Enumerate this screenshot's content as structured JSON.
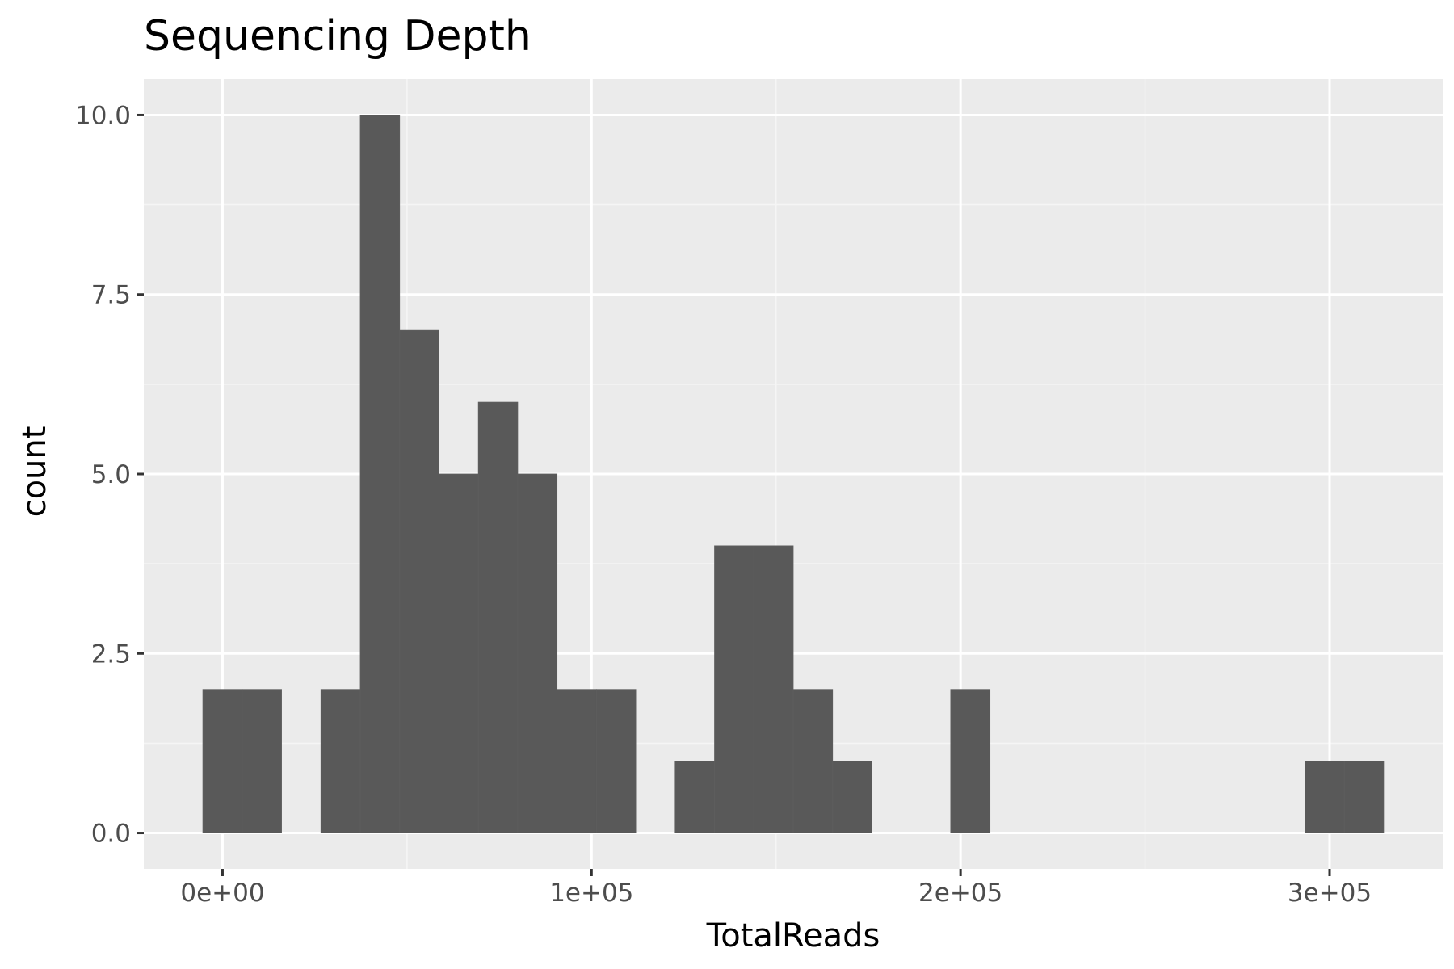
{
  "chart_data": {
    "type": "bar",
    "title": "Sequencing Depth",
    "xlabel": "TotalReads",
    "ylabel": "count",
    "bin_width": 10666,
    "bins": [
      {
        "center": 0,
        "count": 2
      },
      {
        "center": 10666,
        "count": 2
      },
      {
        "center": 21332,
        "count": 0
      },
      {
        "center": 31998,
        "count": 2
      },
      {
        "center": 42664,
        "count": 10
      },
      {
        "center": 53330,
        "count": 7
      },
      {
        "center": 63996,
        "count": 5
      },
      {
        "center": 74662,
        "count": 6
      },
      {
        "center": 85328,
        "count": 5
      },
      {
        "center": 95994,
        "count": 2
      },
      {
        "center": 106660,
        "count": 2
      },
      {
        "center": 117326,
        "count": 0
      },
      {
        "center": 127992,
        "count": 1
      },
      {
        "center": 138658,
        "count": 4
      },
      {
        "center": 149324,
        "count": 4
      },
      {
        "center": 159990,
        "count": 2
      },
      {
        "center": 170656,
        "count": 1
      },
      {
        "center": 181322,
        "count": 0
      },
      {
        "center": 191988,
        "count": 0
      },
      {
        "center": 202654,
        "count": 2
      },
      {
        "center": 213320,
        "count": 0
      },
      {
        "center": 223986,
        "count": 0
      },
      {
        "center": 234652,
        "count": 0
      },
      {
        "center": 245318,
        "count": 0
      },
      {
        "center": 255984,
        "count": 0
      },
      {
        "center": 266650,
        "count": 0
      },
      {
        "center": 277316,
        "count": 0
      },
      {
        "center": 287982,
        "count": 0
      },
      {
        "center": 298648,
        "count": 1
      },
      {
        "center": 309314,
        "count": 1
      }
    ],
    "xlim": [
      -21333,
      330647
    ],
    "ylim": [
      -0.5,
      10.5
    ],
    "x_ticks": [
      {
        "value": 0,
        "label": "0e+00"
      },
      {
        "value": 100000,
        "label": "1e+05"
      },
      {
        "value": 200000,
        "label": "2e+05"
      },
      {
        "value": 300000,
        "label": "3e+05"
      }
    ],
    "y_ticks": [
      {
        "value": 0,
        "label": "0.0"
      },
      {
        "value": 2.5,
        "label": "2.5"
      },
      {
        "value": 5,
        "label": "5.0"
      },
      {
        "value": 7.5,
        "label": "7.5"
      },
      {
        "value": 10,
        "label": "10.0"
      }
    ],
    "grid": true,
    "colors": {
      "panel": "#ebebeb",
      "grid_major": "#ffffff",
      "grid_minor": "#f5f5f5",
      "bar_fill": "#595959",
      "bar_stroke": "#5e5e5e",
      "tick": "#333333"
    }
  }
}
